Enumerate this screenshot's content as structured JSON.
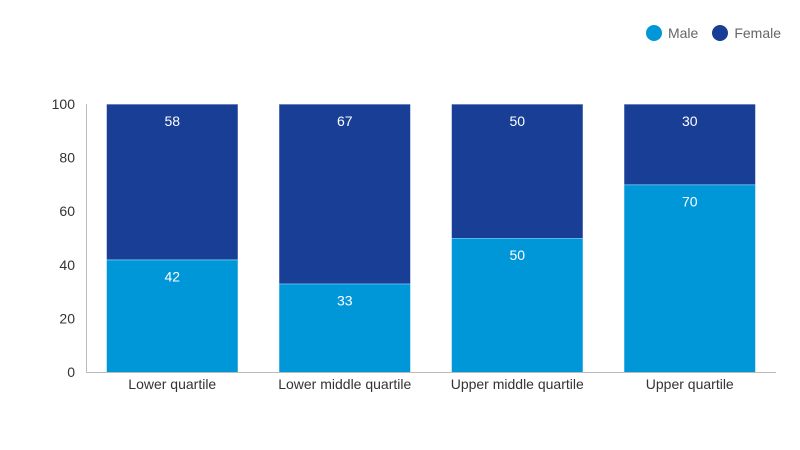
{
  "chart_data": {
    "type": "bar",
    "stacked": true,
    "categories": [
      "Lower quartile",
      "Lower middle quartile",
      "Upper middle quartile",
      "Upper quartile"
    ],
    "series": [
      {
        "name": "Male",
        "color": "#0097d8",
        "values": [
          42,
          33,
          50,
          70
        ]
      },
      {
        "name": "Female",
        "color": "#183e96",
        "values": [
          58,
          67,
          50,
          30
        ]
      }
    ],
    "ylim": [
      0,
      100
    ],
    "yticks": [
      "0",
      "20",
      "40",
      "60",
      "80",
      "100"
    ],
    "grid": false,
    "legend_position": "top-right",
    "data_labels": true
  },
  "legend": {
    "male_label": "Male",
    "female_label": "Female"
  }
}
